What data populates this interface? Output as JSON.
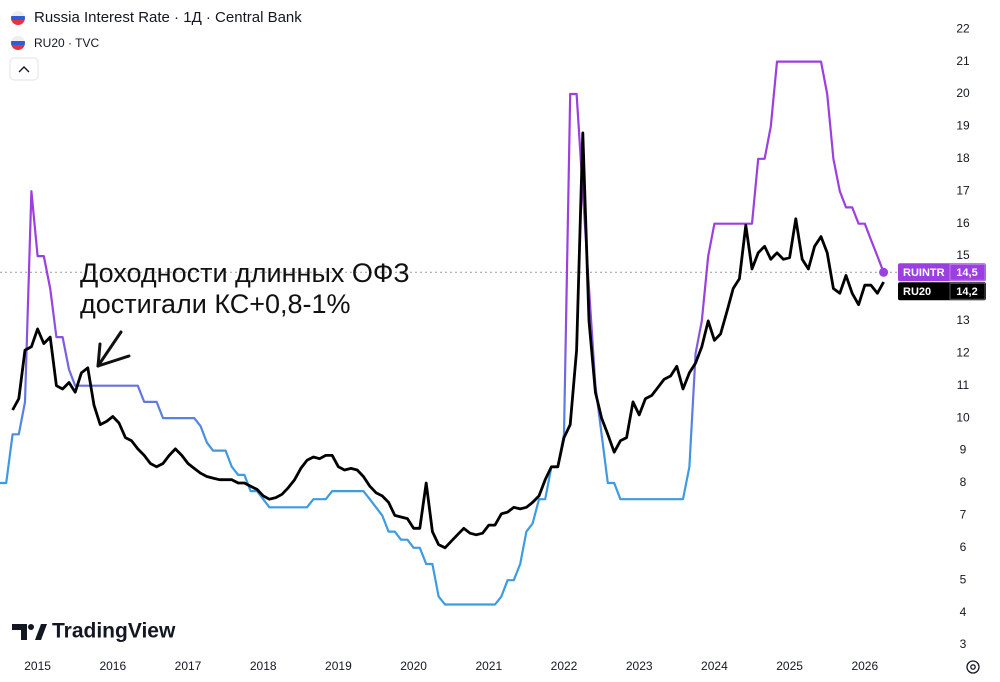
{
  "chart_data": {
    "type": "line",
    "title": "Russia Interest Rate · 1Д · Central Bank",
    "subtitle": "RU20 · TVC",
    "annotation": [
      "Доходности длинных ОФЗ",
      "достигали КС+0,8-1%"
    ],
    "watermark": "TradingView",
    "grid": false,
    "xlim": [
      2014.5,
      2027
    ],
    "xticks": [
      2015,
      2016,
      2017,
      2018,
      2019,
      2020,
      2021,
      2022,
      2023,
      2024,
      2025,
      2026
    ],
    "ylim": [
      2.6,
      22.9
    ],
    "yticks": [
      3,
      4,
      5,
      6,
      7,
      8,
      9,
      10,
      11,
      12,
      13,
      14,
      15,
      16,
      17,
      18,
      19,
      20,
      21,
      22
    ],
    "x": [
      2014.5,
      2014.583,
      2014.667,
      2014.75,
      2014.833,
      2014.917,
      2015,
      2015.083,
      2015.167,
      2015.25,
      2015.333,
      2015.417,
      2015.5,
      2015.583,
      2015.667,
      2015.75,
      2015.833,
      2015.917,
      2016,
      2016.083,
      2016.167,
      2016.25,
      2016.333,
      2016.417,
      2016.5,
      2016.583,
      2016.667,
      2016.75,
      2016.833,
      2016.917,
      2017,
      2017.083,
      2017.167,
      2017.25,
      2017.333,
      2017.417,
      2017.5,
      2017.583,
      2017.667,
      2017.75,
      2017.833,
      2017.917,
      2018,
      2018.083,
      2018.167,
      2018.25,
      2018.333,
      2018.417,
      2018.5,
      2018.583,
      2018.667,
      2018.75,
      2018.833,
      2018.917,
      2019,
      2019.083,
      2019.167,
      2019.25,
      2019.333,
      2019.417,
      2019.5,
      2019.583,
      2019.667,
      2019.75,
      2019.833,
      2019.917,
      2020,
      2020.083,
      2020.167,
      2020.25,
      2020.333,
      2020.417,
      2020.5,
      2020.583,
      2020.667,
      2020.75,
      2020.833,
      2020.917,
      2021,
      2021.083,
      2021.167,
      2021.25,
      2021.333,
      2021.417,
      2021.5,
      2021.583,
      2021.667,
      2021.75,
      2021.833,
      2021.917,
      2022,
      2022.083,
      2022.167,
      2022.25,
      2022.333,
      2022.417,
      2022.5,
      2022.583,
      2022.667,
      2022.75,
      2022.833,
      2022.917,
      2023,
      2023.083,
      2023.167,
      2023.25,
      2023.333,
      2023.417,
      2023.5,
      2023.583,
      2023.667,
      2023.75,
      2023.833,
      2023.917,
      2024,
      2024.083,
      2024.167,
      2024.25,
      2024.333,
      2024.417,
      2024.5,
      2024.583,
      2024.667,
      2024.75,
      2024.833,
      2024.917,
      2025,
      2025.083,
      2025.167,
      2025.25,
      2025.333,
      2025.417,
      2025.5,
      2025.583,
      2025.667,
      2025.75,
      2025.833,
      2025.917,
      2026,
      2026.083,
      2026.167,
      2026.25
    ],
    "series": [
      {
        "name": "Russia Interest Rate · 1Д · Central Bank",
        "tag": "RUINTR",
        "last_label": "14,5",
        "color": "#9b3fe0",
        "color_low": "#3d9be0",
        "values": [
          8,
          8,
          9.5,
          9.5,
          10.5,
          17,
          15,
          15,
          14,
          12.5,
          12.5,
          11.5,
          11,
          11,
          11,
          11,
          11,
          11,
          11,
          11,
          11,
          11,
          11,
          10.5,
          10.5,
          10.5,
          10,
          10,
          10,
          10,
          10,
          10,
          9.75,
          9.25,
          9,
          9,
          9,
          8.5,
          8.25,
          8.25,
          7.75,
          7.75,
          7.5,
          7.25,
          7.25,
          7.25,
          7.25,
          7.25,
          7.25,
          7.25,
          7.5,
          7.5,
          7.5,
          7.75,
          7.75,
          7.75,
          7.75,
          7.75,
          7.75,
          7.5,
          7.25,
          7,
          6.5,
          6.5,
          6.25,
          6.25,
          6,
          6,
          5.5,
          5.5,
          4.5,
          4.25,
          4.25,
          4.25,
          4.25,
          4.25,
          4.25,
          4.25,
          4.25,
          4.25,
          4.5,
          5,
          5,
          5.5,
          6.5,
          6.75,
          7.5,
          7.5,
          8.5,
          8.5,
          9.5,
          20,
          20,
          17,
          14,
          11,
          9.5,
          8,
          8,
          7.5,
          7.5,
          7.5,
          7.5,
          7.5,
          7.5,
          7.5,
          7.5,
          7.5,
          7.5,
          7.5,
          8.5,
          12,
          13,
          15,
          16,
          16,
          16,
          16,
          16,
          16,
          16,
          18,
          18,
          19,
          21,
          21,
          21,
          21,
          21,
          21,
          21,
          21,
          20,
          18,
          17,
          16.5,
          16.5,
          16,
          16,
          15.5,
          15,
          14.5
        ]
      },
      {
        "name": "RU20 · TVC",
        "tag": "RU20",
        "last_label": "14,2",
        "color": "#000000",
        "values": [
          null,
          null,
          10.25,
          10.6,
          12.1,
          12.2,
          12.75,
          12.3,
          12.5,
          11,
          10.9,
          11.1,
          10.8,
          11.4,
          11.55,
          10.4,
          9.8,
          9.9,
          10.05,
          9.85,
          9.4,
          9.3,
          9.05,
          8.85,
          8.6,
          8.5,
          8.6,
          8.85,
          9.05,
          8.85,
          8.6,
          8.45,
          8.3,
          8.2,
          8.15,
          8.1,
          8.1,
          8.1,
          8,
          8,
          7.9,
          7.8,
          7.6,
          7.5,
          7.55,
          7.65,
          7.85,
          8.1,
          8.45,
          8.7,
          8.8,
          8.75,
          8.85,
          8.85,
          8.5,
          8.4,
          8.45,
          8.4,
          8.2,
          7.9,
          7.7,
          7.6,
          7.4,
          7,
          6.95,
          6.9,
          6.6,
          6.6,
          8,
          6.5,
          6.1,
          6,
          6.2,
          6.4,
          6.6,
          6.45,
          6.4,
          6.45,
          6.7,
          6.7,
          7.05,
          7.1,
          7.25,
          7.2,
          7.25,
          7.4,
          7.6,
          8.1,
          8.5,
          8.5,
          9.4,
          9.8,
          12.1,
          18.8,
          13,
          10.8,
          10,
          9.5,
          8.95,
          9.3,
          9.4,
          10.5,
          10.1,
          10.6,
          10.7,
          10.95,
          11.2,
          11.3,
          11.6,
          10.9,
          11.4,
          11.7,
          12.2,
          13,
          12.4,
          12.6,
          13.3,
          14,
          14.3,
          15.95,
          14.6,
          15.1,
          15.3,
          14.9,
          15.1,
          14.9,
          14.95,
          16.15,
          14.9,
          14.6,
          15.3,
          15.6,
          15.1,
          14,
          13.85,
          14.4,
          13.85,
          13.5,
          14.1,
          14.1,
          13.85,
          14.2
        ]
      }
    ]
  }
}
